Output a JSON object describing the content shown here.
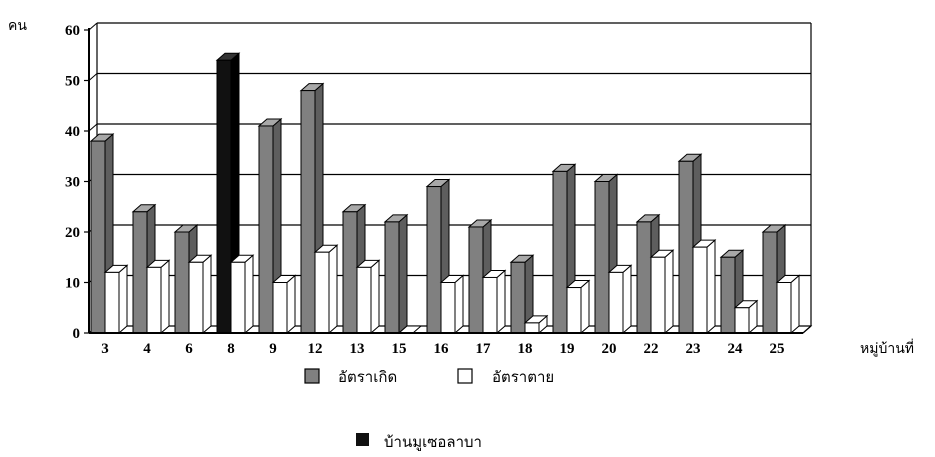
{
  "chart_data": {
    "type": "bar",
    "title": "",
    "ylabel": "คน",
    "xlabel": "หมู่บ้านที่",
    "ylim": [
      0,
      60
    ],
    "yticks": [
      0,
      10,
      20,
      30,
      40,
      50,
      60
    ],
    "grid": true,
    "categories": [
      "3",
      "4",
      "6",
      "8",
      "9",
      "12",
      "13",
      "15",
      "16",
      "17",
      "18",
      "19",
      "20",
      "22",
      "23",
      "24",
      "25"
    ],
    "series": [
      {
        "name": "อัตราเกิด",
        "values": [
          38,
          24,
          20,
          54,
          41,
          48,
          24,
          22,
          29,
          21,
          14,
          32,
          30,
          22,
          34,
          15,
          20
        ]
      },
      {
        "name": "อัตราตาย",
        "values": [
          12,
          13,
          14,
          14,
          10,
          16,
          13,
          0,
          10,
          11,
          2,
          9,
          12,
          15,
          17,
          5,
          10
        ]
      }
    ],
    "highlight": {
      "category": "8",
      "label": "บ้านมูเซอลาบา",
      "color": "#111111"
    },
    "colors": {
      "birth": "#808080",
      "death": "#ffffff",
      "highlight": "#111111"
    },
    "legend_position": "bottom"
  }
}
